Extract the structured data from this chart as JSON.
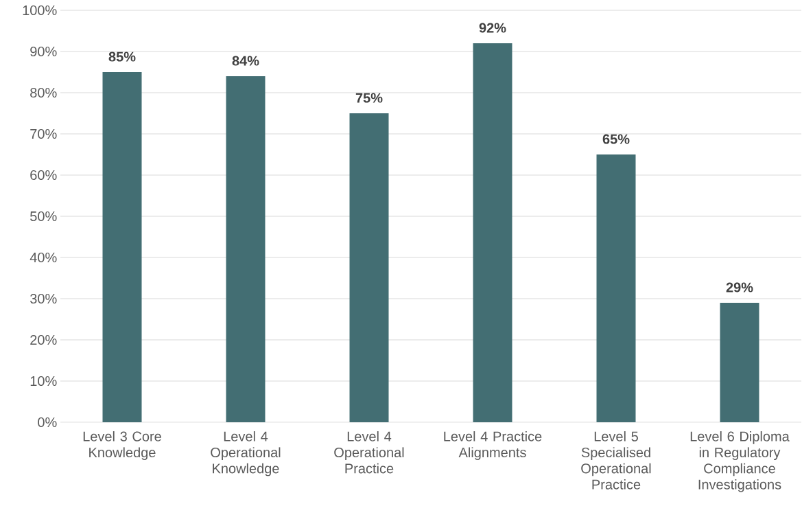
{
  "chart_data": {
    "type": "bar",
    "categories": [
      "Level 3 Core Knowledge",
      "Level 4 Operational Knowledge",
      "Level 4 Operational Practice",
      "Level 4 Practice Alignments",
      "Level 5 Specialised Operational Practice",
      "Level 6 Diploma in Regulatory Compliance Investigations"
    ],
    "values": [
      85,
      84,
      75,
      92,
      65,
      29
    ],
    "value_labels": [
      "85%",
      "84%",
      "75%",
      "92%",
      "65%",
      "29%"
    ],
    "color": "#436e73",
    "ylim": [
      0,
      100
    ],
    "yticks": [
      {
        "value": 0,
        "label": "0%"
      },
      {
        "value": 10,
        "label": "10%"
      },
      {
        "value": 20,
        "label": "20%"
      },
      {
        "value": 30,
        "label": "30%"
      },
      {
        "value": 40,
        "label": "40%"
      },
      {
        "value": 50,
        "label": "50%"
      },
      {
        "value": 60,
        "label": "60%"
      },
      {
        "value": 70,
        "label": "70%"
      },
      {
        "value": 80,
        "label": "80%"
      },
      {
        "value": 90,
        "label": "90%"
      },
      {
        "value": 100,
        "label": "100%"
      }
    ],
    "grid": "y"
  }
}
